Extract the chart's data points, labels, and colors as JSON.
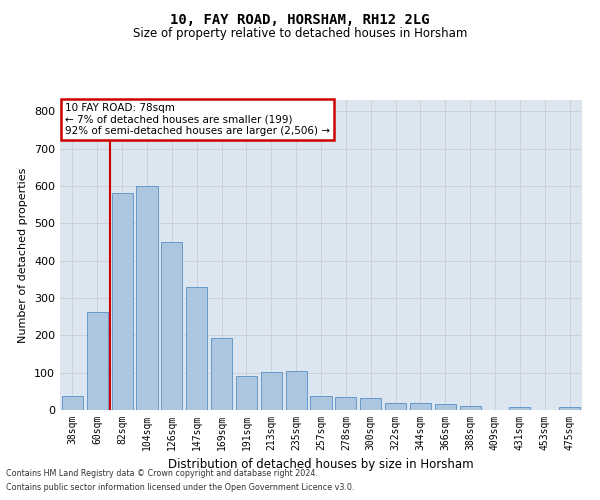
{
  "title1": "10, FAY ROAD, HORSHAM, RH12 2LG",
  "title2": "Size of property relative to detached houses in Horsham",
  "xlabel": "Distribution of detached houses by size in Horsham",
  "ylabel": "Number of detached properties",
  "categories": [
    "38sqm",
    "60sqm",
    "82sqm",
    "104sqm",
    "126sqm",
    "147sqm",
    "169sqm",
    "191sqm",
    "213sqm",
    "235sqm",
    "257sqm",
    "278sqm",
    "300sqm",
    "322sqm",
    "344sqm",
    "366sqm",
    "388sqm",
    "409sqm",
    "431sqm",
    "453sqm",
    "475sqm"
  ],
  "values": [
    38,
    263,
    580,
    600,
    450,
    330,
    193,
    90,
    103,
    105,
    37,
    35,
    32,
    18,
    18,
    15,
    11,
    0,
    8,
    0,
    8
  ],
  "bar_color": "#adc6e0",
  "bar_edge_color": "#6699cc",
  "vline_color": "#cc0000",
  "vline_x_index": 2,
  "annotation_text": "10 FAY ROAD: 78sqm\n← 7% of detached houses are smaller (199)\n92% of semi-detached houses are larger (2,506) →",
  "annotation_box_color": "#ffffff",
  "annotation_box_edge": "#cc0000",
  "grid_color": "#cccccc",
  "bg_color": "#dce6f0",
  "footer1": "Contains HM Land Registry data © Crown copyright and database right 2024.",
  "footer2": "Contains public sector information licensed under the Open Government Licence v3.0.",
  "ylim": [
    0,
    830
  ],
  "yticks": [
    0,
    100,
    200,
    300,
    400,
    500,
    600,
    700,
    800
  ]
}
